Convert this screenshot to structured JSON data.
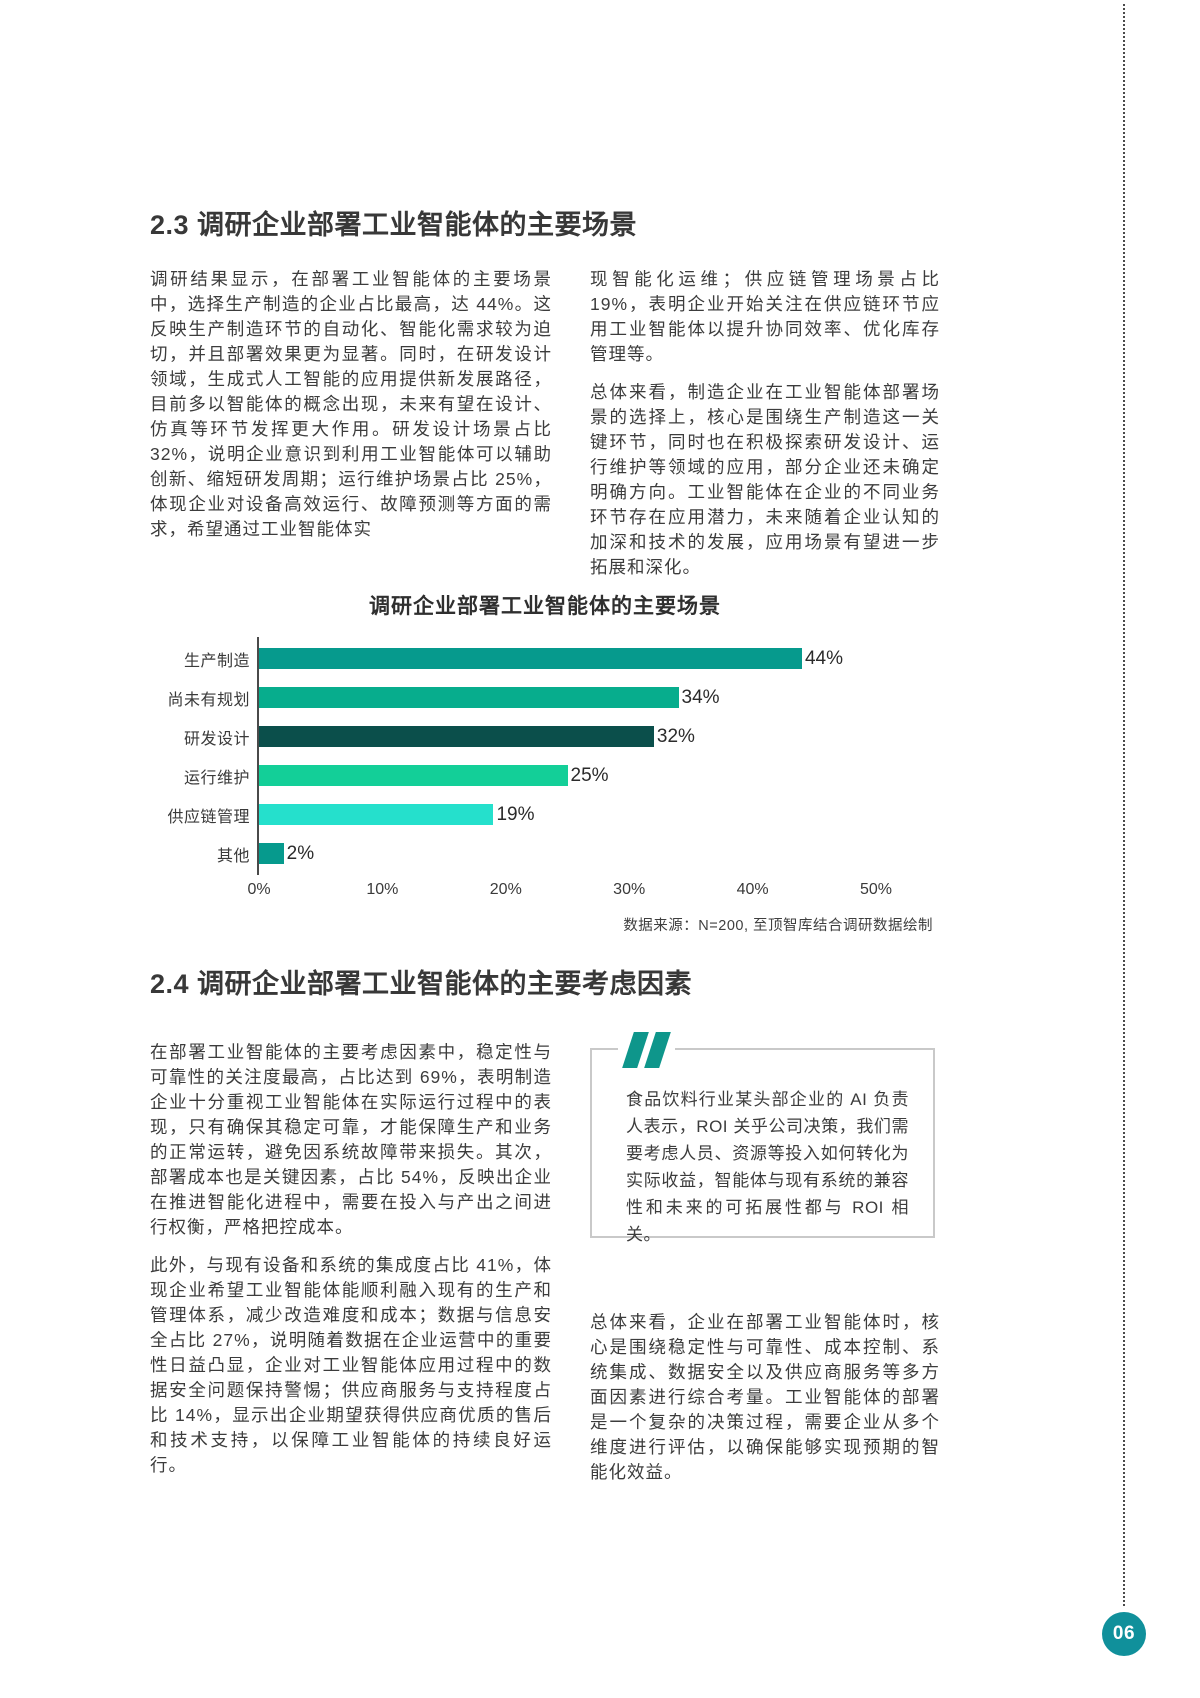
{
  "colors": {
    "accent_teal": "#0e968b",
    "page_badge_teal": "#10909b",
    "axis_gray": "#4a4a4a",
    "quote_border_gray": "#c9c9c9"
  },
  "section_23": {
    "heading": "2.3 调研企业部署工业智能体的主要场景",
    "left_col": {
      "p1": "调研结果显示，在部署工业智能体的主要场景中，选择生产制造的企业占比最高，达 44%。这反映生产制造环节的自动化、智能化需求较为迫切，并且部署效果更为显著。同时，在研发设计领域，生成式人工智能的应用提供新发展路径，目前多以智能体的概念出现，未来有望在设计、仿真等环节发挥更大作用。研发设计场景占比 32%，说明企业意识到利用工业智能体可以辅助创新、缩短研发周期；运行维护场景占比 25%，体现企业对设备高效运行、故障预测等方面的需求，希望通过工业智能体实"
    },
    "right_col": {
      "p1": "现智能化运维；供应链管理场景占比 19%，表明企业开始关注在供应链环节应用工业智能体以提升协同效率、优化库存管理等。",
      "p2": "总体来看，制造企业在工业智能体部署场景的选择上，核心是围绕生产制造这一关键环节，同时也在积极探索研发设计、运行维护等领域的应用，部分企业还未确定明确方向。工业智能体在企业的不同业务环节存在应用潜力，未来随着企业认知的加深和技术的发展，应用场景有望进一步拓展和深化。"
    }
  },
  "chart_data": {
    "type": "bar",
    "orientation": "horizontal",
    "title": "调研企业部署工业智能体的主要场景",
    "categories": [
      "生产制造",
      "尚未有规划",
      "研发设计",
      "运行维护",
      "供应链管理",
      "其他"
    ],
    "values": [
      44,
      34,
      32,
      25,
      19,
      2
    ],
    "value_labels": [
      "44%",
      "34%",
      "32%",
      "25%",
      "19%",
      "2%"
    ],
    "bar_colors": [
      "#069a8d",
      "#07ad8d",
      "#0b4f4b",
      "#13cf98",
      "#25e0cc",
      "#069a8d"
    ],
    "x_ticks": [
      "0%",
      "10%",
      "20%",
      "30%",
      "40%",
      "50%"
    ],
    "xlim": [
      0,
      50
    ],
    "grid": false,
    "legend": false,
    "source": "数据来源：N=200, 至顶智库结合调研数据绘制"
  },
  "section_24": {
    "heading": "2.4 调研企业部署工业智能体的主要考虑因素",
    "left_col": {
      "p1": "在部署工业智能体的主要考虑因素中，稳定性与可靠性的关注度最高，占比达到 69%，表明制造企业十分重视工业智能体在实际运行过程中的表现，只有确保其稳定可靠，才能保障生产和业务的正常运转，避免因系统故障带来损失。其次，部署成本也是关键因素，占比 54%，反映出企业在推进智能化进程中，需要在投入与产出之间进行权衡，严格把控成本。",
      "p2": "此外，与现有设备和系统的集成度占比 41%，体现企业希望工业智能体能顺利融入现有的生产和管理体系，减少改造难度和成本；数据与信息安全占比 27%，说明随着数据在企业运营中的重要性日益凸显，企业对工业智能体应用过程中的数据安全问题保持警惕；供应商服务与支持程度占比 14%，显示出企业期望获得供应商优质的售后和技术支持，以保障工业智能体的持续良好运行。"
    },
    "quote": "食品饮料行业某头部企业的 AI 负责人表示，ROI 关乎公司决策，我们需要考虑人员、资源等投入如何转化为实际收益，智能体与现有系统的兼容性和未来的可拓展性都与 ROI 相关。",
    "right_col": {
      "p1": "总体来看，企业在部署工业智能体时，核心是围绕稳定性与可靠性、成本控制、系统集成、数据安全以及供应商服务等多方面因素进行综合考量。工业智能体的部署是一个复杂的决策过程，需要企业从多个维度进行评估，以确保能够实现预期的智能化效益。"
    }
  },
  "page": {
    "page_number": "06"
  }
}
